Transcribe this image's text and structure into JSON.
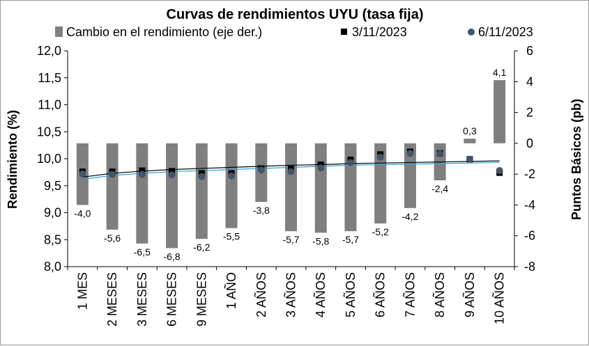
{
  "chart_data": {
    "type": "bar",
    "title": "Curvas de rendimientos UYU (tasa fija)",
    "categories": [
      "1 MES",
      "2 MESES",
      "3 MESES",
      "6 MESES",
      "9 MESES",
      "1 AÑO",
      "2 AÑOS",
      "3 AÑOS",
      "4 AÑOS",
      "5 AÑOS",
      "6 AÑOS",
      "7 AÑOS",
      "8 AÑOS",
      "9 AÑOS",
      "10 AÑOS"
    ],
    "ylabel": "Rendimiento (%)",
    "y2label": "Puntos Básicos (pb)",
    "ylim": [
      8.0,
      12.0
    ],
    "y2lim": [
      -8,
      6
    ],
    "yticks": [
      "8,0",
      "8,5",
      "9,0",
      "9,5",
      "10,0",
      "10,5",
      "11,0",
      "11,5",
      "12,0"
    ],
    "y2ticks": [
      "-8",
      "-6",
      "-4",
      "-2",
      "0",
      "2",
      "4",
      "6"
    ],
    "series": [
      {
        "name": "Cambio en el rendimiento (eje der.)",
        "axis": "right",
        "kind": "bar",
        "color": "#7f7f7f",
        "values": [
          -4.0,
          -5.6,
          -6.5,
          -6.8,
          -6.2,
          -5.5,
          -3.8,
          -5.7,
          -5.8,
          -5.7,
          -5.2,
          -4.2,
          -2.4,
          0.3,
          4.1
        ],
        "labels": [
          "-4,0",
          "-5,6",
          "-6,5",
          "-6,8",
          "-6,2",
          "-5,5",
          "-3,8",
          "-5,7",
          "-5,8",
          "-5,7",
          "-5,2",
          "-4,2",
          "-2,4",
          "0,3",
          "4,1"
        ]
      },
      {
        "name": "3/11/2023",
        "axis": "left",
        "kind": "marker-square",
        "color": "#000000",
        "values": [
          9.76,
          9.76,
          9.78,
          9.77,
          9.73,
          9.73,
          9.82,
          9.81,
          9.89,
          9.98,
          10.08,
          10.13,
          10.1,
          9.99,
          9.74
        ]
      },
      {
        "name": "6/11/2023",
        "axis": "left",
        "kind": "marker-circle",
        "color": "#44546a",
        "values": [
          9.72,
          9.71,
          9.71,
          9.7,
          9.67,
          9.68,
          9.79,
          9.76,
          9.83,
          9.93,
          10.03,
          10.1,
          10.09,
          9.99,
          9.78
        ]
      }
    ],
    "trendlines": [
      {
        "series": "3/11/2023",
        "color": "#000000",
        "values": [
          9.66,
          9.73,
          9.77,
          9.8,
          9.82,
          9.84,
          9.86,
          9.88,
          9.89,
          9.91,
          9.92,
          9.93,
          9.94,
          9.95,
          9.96
        ]
      },
      {
        "series": "6/11/2023",
        "color": "#2e9fd6",
        "values": [
          9.62,
          9.69,
          9.73,
          9.76,
          9.78,
          9.8,
          9.82,
          9.84,
          9.86,
          9.88,
          9.89,
          9.9,
          9.91,
          9.92,
          9.93
        ]
      }
    ]
  }
}
